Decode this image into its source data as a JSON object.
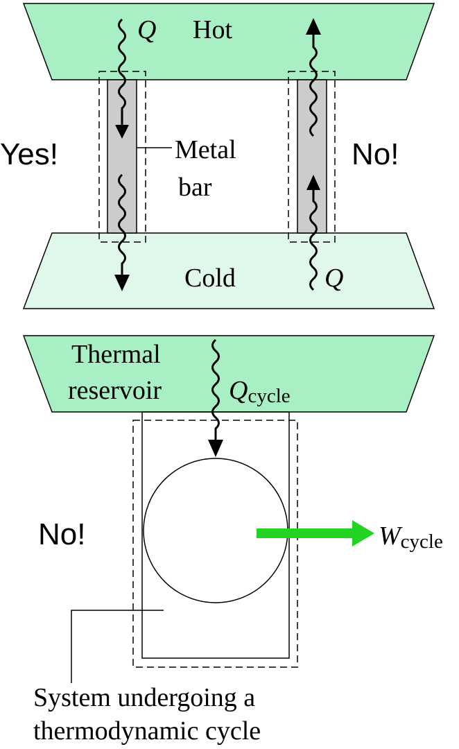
{
  "top_panel": {
    "hot_label": "Hot",
    "cold_label": "Cold",
    "yes_label": "Yes!",
    "no_label": "No!",
    "metal_bar_line1": "Metal",
    "metal_bar_line2": "bar",
    "q_left": "Q",
    "q_right": "Q"
  },
  "bottom_panel": {
    "reservoir_line1": "Thermal",
    "reservoir_line2": "reservoir",
    "q_cycle_main": "Q",
    "q_cycle_sub": "cycle",
    "w_cycle_main": "W",
    "w_cycle_sub": "cycle",
    "no_label": "No!",
    "system_line1": "System undergoing a",
    "system_line2": "thermodynamic cycle"
  },
  "colors": {
    "hot_reservoir": "#a8f0c4",
    "cold_reservoir": "#e0f8ea",
    "metal_bar": "#cccccc",
    "work_arrow": "#22d322",
    "ink": "#000000"
  }
}
